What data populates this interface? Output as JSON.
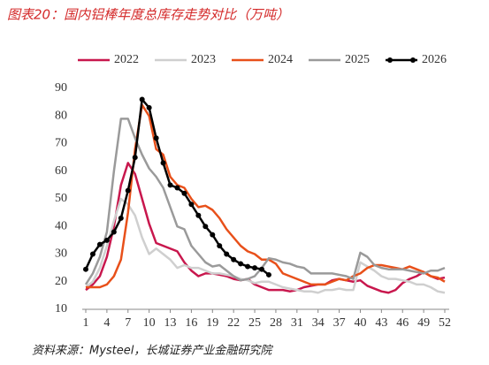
{
  "chart_data": {
    "type": "line",
    "title": "图表20：国内铝棒年度总库存走势对比（万吨）",
    "source": "资料来源：Mysteel，长城证券产业金融研究院",
    "x": [
      1,
      2,
      3,
      4,
      5,
      6,
      7,
      8,
      9,
      10,
      11,
      12,
      13,
      14,
      15,
      16,
      17,
      18,
      19,
      20,
      21,
      22,
      23,
      24,
      25,
      26,
      27,
      28,
      29,
      30,
      31,
      32,
      33,
      34,
      35,
      36,
      37,
      38,
      39,
      40,
      41,
      42,
      43,
      44,
      45,
      46,
      47,
      48,
      49,
      50,
      51,
      52
    ],
    "xlim": [
      1,
      52
    ],
    "xticks": [
      1,
      4,
      7,
      10,
      13,
      16,
      19,
      22,
      25,
      28,
      31,
      34,
      37,
      40,
      43,
      46,
      49,
      52
    ],
    "ylim": [
      10,
      90
    ],
    "yticks": [
      10,
      20,
      30,
      40,
      50,
      60,
      70,
      80,
      90
    ],
    "grid": false,
    "legend": "top",
    "series": [
      {
        "name": "2022",
        "color": "#c8174d",
        "values": [
          17,
          19,
          22,
          29,
          40,
          55,
          63,
          59,
          50,
          41,
          34,
          33,
          32,
          31,
          27,
          24,
          22,
          23,
          23,
          22.5,
          22,
          21,
          20.5,
          21,
          19,
          18,
          17,
          17,
          17,
          16.5,
          17,
          18,
          18.5,
          19,
          19,
          20.5,
          21,
          20.5,
          20,
          20.5,
          18.5,
          17.5,
          16.5,
          16,
          17,
          19.5,
          21,
          22,
          23.5,
          22,
          21,
          21.5
        ]
      },
      {
        "name": "2023",
        "color": "#cfcfcf",
        "values": [
          18,
          20,
          25,
          33,
          42,
          50,
          48,
          44,
          36,
          30,
          32,
          30,
          28,
          25,
          26,
          25,
          25,
          24,
          23,
          23,
          22.5,
          22,
          21,
          20.5,
          19.5,
          20,
          20,
          19,
          18,
          17.5,
          17,
          16.5,
          16.5,
          16,
          17,
          17,
          17.5,
          17,
          17,
          27,
          25.5,
          24,
          22,
          21,
          21,
          20.5,
          20,
          19,
          19,
          18,
          16.5,
          16
        ]
      },
      {
        "name": "2024",
        "color": "#e8501a",
        "values": [
          18,
          18,
          18,
          19,
          22,
          28,
          45,
          68,
          84,
          80,
          68,
          66,
          58,
          55,
          54,
          50,
          47,
          47.5,
          46,
          43,
          39,
          36,
          33,
          31,
          30,
          28,
          28,
          26.5,
          23,
          22,
          21,
          20,
          19,
          19,
          19,
          20,
          21,
          20.5,
          22,
          23,
          25,
          26,
          26,
          25.5,
          25,
          24.5,
          25.5,
          24.5,
          23.5,
          22,
          21.5,
          20
        ]
      },
      {
        "name": "2025",
        "color": "#9a9a9a",
        "values": [
          19,
          23,
          29,
          38,
          60,
          79,
          79,
          72,
          66,
          61,
          58,
          54,
          47,
          40,
          39,
          33,
          30,
          27,
          25.5,
          26,
          24,
          22,
          20.5,
          21,
          22,
          25,
          28.5,
          28,
          27,
          26.5,
          25.5,
          25,
          23,
          23,
          23,
          23,
          22.5,
          22,
          21,
          30.5,
          29,
          26,
          25,
          24.5,
          24.5,
          24.5,
          24,
          23.5,
          23,
          24,
          24,
          25
        ]
      },
      {
        "name": "2026",
        "color": "#000000",
        "marker": true,
        "values": [
          24.5,
          30,
          33.5,
          35,
          38,
          43,
          53,
          65,
          86,
          83,
          72,
          63,
          55,
          54,
          52,
          48,
          44,
          40,
          37,
          33,
          30,
          28,
          26.5,
          25.5,
          25,
          24.5,
          22.5,
          null,
          null,
          null,
          null,
          null,
          null,
          null,
          null,
          null,
          null,
          null,
          null,
          null,
          null,
          null,
          null,
          null,
          null,
          null,
          null,
          null,
          null,
          null,
          null,
          null
        ]
      }
    ]
  }
}
